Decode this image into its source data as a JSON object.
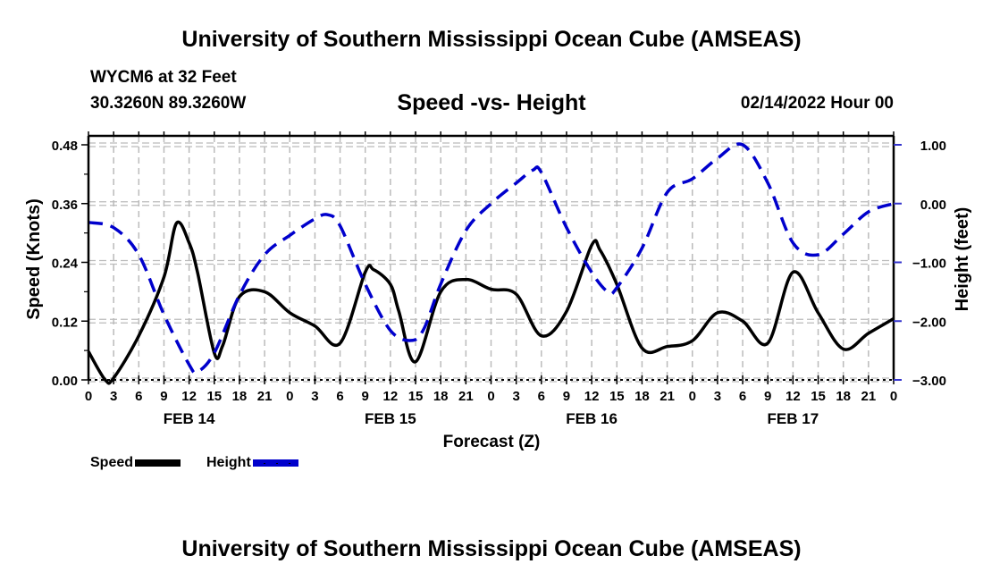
{
  "header": {
    "main_title": "University of Southern Mississippi Ocean Cube (AMSEAS)",
    "station": "WYCM6 at 32 Feet",
    "coords": "30.3260N  89.3260W",
    "subtitle": "Speed -vs- Height",
    "datetime": "02/14/2022 Hour 00"
  },
  "footer": {
    "title": "University of Southern Mississippi Ocean Cube (AMSEAS)"
  },
  "legend": {
    "items": [
      {
        "label": "Speed",
        "color": "#000000",
        "style": "solid"
      },
      {
        "label": "Height",
        "color": "#0000cc",
        "style": "dashed"
      }
    ]
  },
  "chart_data": {
    "type": "line",
    "title": "Speed -vs- Height",
    "xlabel": "Forecast (Z)",
    "ylabel": "Speed (Knots)",
    "y2label": "Height (feet)",
    "xlim": [
      0,
      96
    ],
    "ylim": [
      0,
      0.48
    ],
    "y2lim": [
      -3.0,
      1.0
    ],
    "grid": true,
    "legend_position": "bottom-left",
    "x_tick_labels": [
      "0",
      "3",
      "6",
      "9",
      "12",
      "15",
      "18",
      "21",
      "0",
      "3",
      "6",
      "9",
      "12",
      "15",
      "18",
      "21",
      "0",
      "3",
      "6",
      "9",
      "12",
      "15",
      "18",
      "21",
      "0",
      "3",
      "6",
      "9",
      "12",
      "15",
      "18",
      "21",
      "0"
    ],
    "day_labels": [
      {
        "label": "FEB 14",
        "hour": 12
      },
      {
        "label": "FEB 15",
        "hour": 36
      },
      {
        "label": "FEB 16",
        "hour": 60
      },
      {
        "label": "FEB 17",
        "hour": 84
      }
    ],
    "y_ticks": [
      "0.00",
      "0.12",
      "0.24",
      "0.36",
      "0.48"
    ],
    "y_tick_values": [
      0,
      0.12,
      0.24,
      0.36,
      0.48
    ],
    "y2_ticks": [
      "−3.00",
      "−2.00",
      "−1.00",
      "0.00",
      "1.00"
    ],
    "y2_tick_values": [
      -3,
      -2,
      -1,
      0,
      1
    ],
    "series": [
      {
        "name": "Speed",
        "axis": "left",
        "color": "#000000",
        "x": [
          0,
          2,
          3,
          6,
          9,
          10.5,
          12,
          13,
          15,
          16,
          18,
          21,
          24,
          27,
          30,
          33,
          34,
          36,
          37,
          39,
          42,
          45,
          48,
          51,
          54,
          57,
          60,
          61,
          63,
          66,
          69,
          72,
          75,
          78,
          81,
          84,
          87,
          90,
          93,
          96
        ],
        "values": [
          0.058,
          0.0,
          0.004,
          0.09,
          0.21,
          0.32,
          0.28,
          0.22,
          0.055,
          0.07,
          0.17,
          0.18,
          0.137,
          0.11,
          0.075,
          0.22,
          0.225,
          0.195,
          0.14,
          0.037,
          0.18,
          0.205,
          0.185,
          0.175,
          0.09,
          0.14,
          0.275,
          0.265,
          0.195,
          0.065,
          0.068,
          0.08,
          0.137,
          0.12,
          0.075,
          0.22,
          0.137,
          0.063,
          0.095,
          0.125
        ]
      },
      {
        "name": "Height",
        "axis": "right",
        "color": "#0000cc",
        "x": [
          0,
          3,
          6,
          9,
          12,
          13,
          15,
          18,
          21,
          24,
          27,
          28.5,
          30,
          33,
          36,
          38.5,
          40,
          42,
          45,
          48,
          51,
          53,
          54,
          57,
          60,
          62,
          63,
          66,
          69,
          72,
          75,
          78,
          81,
          84,
          87,
          90,
          93,
          96
        ],
        "values": [
          -0.32,
          -0.41,
          -0.87,
          -1.89,
          -2.74,
          -2.86,
          -2.54,
          -1.56,
          -0.87,
          -0.54,
          -0.26,
          -0.19,
          -0.38,
          -1.37,
          -2.16,
          -2.33,
          -2.13,
          -1.37,
          -0.46,
          0.0,
          0.35,
          0.57,
          0.53,
          -0.41,
          -1.17,
          -1.51,
          -1.43,
          -0.76,
          0.19,
          0.42,
          0.77,
          1.0,
          0.35,
          -0.67,
          -0.87,
          -0.52,
          -0.14,
          0.0
        ]
      }
    ]
  }
}
